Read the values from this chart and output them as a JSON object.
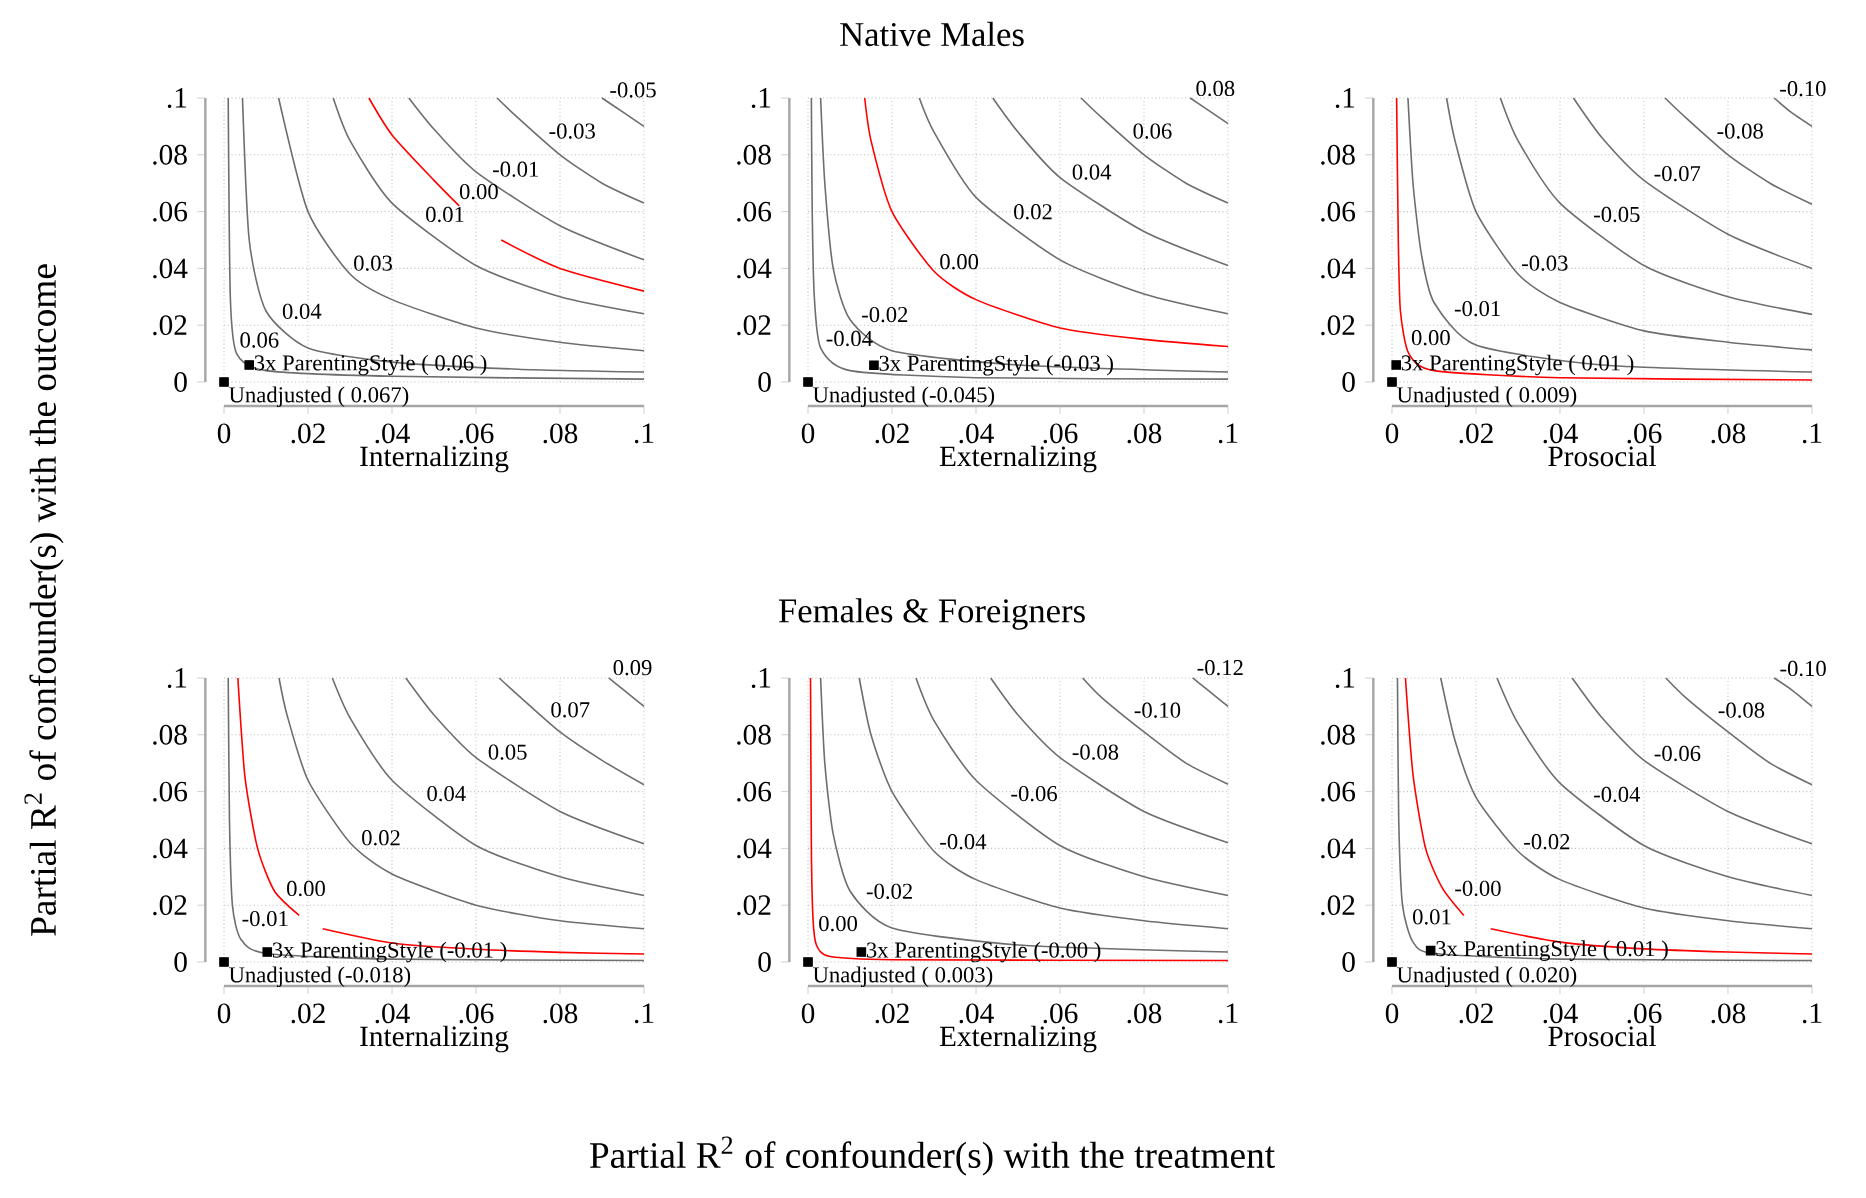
{
  "chart_data": [
    {
      "type": "line",
      "xlabel": "Internalizing",
      "ylabel": "Partial R$^{2}$ of confounder(s) with the outcome",
      "xlim": [
        0,
        0.1
      ],
      "ylim": [
        0,
        0.1
      ],
      "grid": true,
      "xticks": [
        {
          "value": 0,
          "label": "0"
        },
        {
          "value": 0.02,
          "label": ".02"
        },
        {
          "value": 0.04,
          "label": ".04"
        },
        {
          "value": 0.06,
          "label": ".06"
        },
        {
          "value": 0.08,
          "label": ".08"
        },
        {
          "value": 0.1,
          "label": ".1"
        }
      ],
      "yticks": [
        {
          "value": 0,
          "label": "0"
        },
        {
          "value": 0.02,
          "label": ".02"
        },
        {
          "value": 0.04,
          "label": ".04"
        },
        {
          "value": 0.06,
          "label": ".06"
        },
        {
          "value": 0.08,
          "label": ".08"
        },
        {
          "value": 0.1,
          "label": ".1"
        }
      ],
      "series": [
        {
          "name": "0.06",
          "color": "#6e6e6e",
          "x": [
            0.001,
            0.0015,
            0.003,
            0.01,
            0.04,
            0.1
          ],
          "values": [
            0.1,
            0.03,
            0.01,
            0.004,
            0.002,
            0.001
          ]
        },
        {
          "name": "0.04",
          "color": "#6e6e6e",
          "x": [
            0.0044,
            0.006,
            0.01,
            0.02,
            0.04,
            0.07,
            0.1
          ],
          "values": [
            0.1,
            0.05,
            0.025,
            0.012,
            0.007,
            0.0045,
            0.0035
          ]
        },
        {
          "name": "0.03",
          "color": "#6e6e6e",
          "x": [
            0.013,
            0.02,
            0.03,
            0.04,
            0.06,
            0.08,
            0.1
          ],
          "values": [
            0.1,
            0.06,
            0.038,
            0.029,
            0.019,
            0.014,
            0.011
          ]
        },
        {
          "name": "0.01",
          "color": "#6e6e6e",
          "x": [
            0.026,
            0.03,
            0.04,
            0.06,
            0.08,
            0.1
          ],
          "values": [
            0.1,
            0.085,
            0.063,
            0.041,
            0.03,
            0.024
          ]
        },
        {
          "name": "0.00",
          "color": "#ff0000",
          "x": [
            0.0345,
            0.04,
            0.05,
            0.056,
            0.061,
            0.066,
            0.08,
            0.1
          ],
          "values": [
            0.1,
            0.087,
            0.071,
            0.062,
            null,
            0.05,
            0.04,
            0.032
          ]
        },
        {
          "name": "-0.01",
          "color": "#6e6e6e",
          "x": [
            0.044,
            0.05,
            0.06,
            0.08,
            0.1
          ],
          "values": [
            0.1,
            0.089,
            0.074,
            0.055,
            0.043
          ]
        },
        {
          "name": "-0.03",
          "color": "#6e6e6e",
          "x": [
            0.065,
            0.07,
            0.08,
            0.09,
            0.1
          ],
          "values": [
            0.1,
            0.093,
            0.08,
            0.07,
            0.063
          ]
        },
        {
          "name": "-0.05",
          "color": "#6e6e6e",
          "x": [
            0.09,
            0.095,
            0.1
          ],
          "values": [
            0.1,
            0.095,
            0.09
          ]
        },
        {
          "name": "3x ParentingStyle ( 0.06 )",
          "type": "scatter",
          "marker": "square",
          "color": "#000000",
          "x": [
            0.006
          ],
          "values": [
            0.006
          ]
        },
        {
          "name": "Unadjusted ( 0.067)",
          "type": "scatter",
          "marker": "square",
          "color": "#000000",
          "x": [
            0
          ],
          "values": [
            0
          ]
        }
      ]
    },
    {
      "type": "line",
      "title": "Native Males",
      "xlabel": "Externalizing",
      "xlim": [
        0,
        0.1
      ],
      "ylim": [
        0,
        0.1
      ],
      "grid": true,
      "xticks": [
        {
          "value": 0,
          "label": "0"
        },
        {
          "value": 0.02,
          "label": ".02"
        },
        {
          "value": 0.04,
          "label": ".04"
        },
        {
          "value": 0.06,
          "label": ".06"
        },
        {
          "value": 0.08,
          "label": ".08"
        },
        {
          "value": 0.1,
          "label": ".1"
        }
      ],
      "yticks": [
        {
          "value": 0,
          "label": "0"
        },
        {
          "value": 0.02,
          "label": ".02"
        },
        {
          "value": 0.04,
          "label": ".04"
        },
        {
          "value": 0.06,
          "label": ".06"
        },
        {
          "value": 0.08,
          "label": ".08"
        },
        {
          "value": 0.1,
          "label": ".1"
        }
      ],
      "series": [
        {
          "name": "-0.04",
          "color": "#6e6e6e",
          "x": [
            0.0008,
            0.001,
            0.0015,
            0.003,
            0.01,
            0.04,
            0.1
          ],
          "values": [
            0.1,
            0.06,
            0.03,
            0.012,
            0.004,
            0.0015,
            0.001
          ]
        },
        {
          "name": "-0.02",
          "color": "#6e6e6e",
          "x": [
            0.003,
            0.004,
            0.006,
            0.01,
            0.02,
            0.05,
            0.1
          ],
          "values": [
            0.1,
            0.07,
            0.04,
            0.022,
            0.011,
            0.006,
            0.0035
          ]
        },
        {
          "name": "0.00",
          "color": "#ff0000",
          "x": [
            0.0135,
            0.015,
            0.02,
            0.03,
            0.04,
            0.06,
            0.08,
            0.1
          ],
          "values": [
            0.1,
            0.085,
            0.06,
            0.039,
            0.029,
            0.019,
            0.015,
            0.0125
          ]
        },
        {
          "name": "0.02",
          "color": "#6e6e6e",
          "x": [
            0.0265,
            0.03,
            0.04,
            0.06,
            0.08,
            0.1
          ],
          "values": [
            0.1,
            0.088,
            0.065,
            0.043,
            0.031,
            0.024
          ]
        },
        {
          "name": "0.04",
          "color": "#6e6e6e",
          "x": [
            0.044,
            0.05,
            0.06,
            0.08,
            0.1
          ],
          "values": [
            0.1,
            0.088,
            0.072,
            0.053,
            0.041
          ]
        },
        {
          "name": "0.06",
          "color": "#6e6e6e",
          "x": [
            0.065,
            0.07,
            0.08,
            0.09,
            0.1
          ],
          "values": [
            0.1,
            0.093,
            0.08,
            0.07,
            0.063
          ]
        },
        {
          "name": "0.08",
          "color": "#6e6e6e",
          "x": [
            0.091,
            0.095,
            0.1
          ],
          "values": [
            0.1,
            0.096,
            0.091
          ]
        },
        {
          "name": "3x ParentingStyle (-0.03 )",
          "type": "scatter",
          "marker": "square",
          "color": "#000000",
          "x": [
            0.0157
          ],
          "values": [
            0.0059
          ]
        },
        {
          "name": "Unadjusted (-0.045)",
          "type": "scatter",
          "marker": "square",
          "color": "#000000",
          "x": [
            0
          ],
          "values": [
            0
          ]
        }
      ]
    },
    {
      "type": "line",
      "xlabel": "Prosocial",
      "xlim": [
        0,
        0.1
      ],
      "ylim": [
        0,
        0.1
      ],
      "grid": true,
      "xticks": [
        {
          "value": 0,
          "label": "0"
        },
        {
          "value": 0.02,
          "label": ".02"
        },
        {
          "value": 0.04,
          "label": ".04"
        },
        {
          "value": 0.06,
          "label": ".06"
        },
        {
          "value": 0.08,
          "label": ".08"
        },
        {
          "value": 0.1,
          "label": ".1"
        }
      ],
      "yticks": [
        {
          "value": 0,
          "label": "0"
        },
        {
          "value": 0.02,
          "label": ".02"
        },
        {
          "value": 0.04,
          "label": ".04"
        },
        {
          "value": 0.06,
          "label": ".06"
        },
        {
          "value": 0.08,
          "label": ".08"
        },
        {
          "value": 0.1,
          "label": ".1"
        }
      ],
      "series": [
        {
          "name": "0.00",
          "color": "#ff0000",
          "x": [
            0.0011,
            0.0015,
            0.002,
            0.004,
            0.01,
            0.04,
            0.1
          ],
          "values": [
            0.1,
            0.05,
            0.025,
            0.01,
            0.004,
            0.0015,
            0.0007
          ]
        },
        {
          "name": "-0.01",
          "color": "#6e6e6e",
          "x": [
            0.0038,
            0.005,
            0.007,
            0.01,
            0.02,
            0.05,
            0.1
          ],
          "values": [
            0.1,
            0.07,
            0.045,
            0.028,
            0.013,
            0.006,
            0.0035
          ]
        },
        {
          "name": "-0.03",
          "color": "#6e6e6e",
          "x": [
            0.013,
            0.015,
            0.02,
            0.03,
            0.04,
            0.06,
            0.08,
            0.1
          ],
          "values": [
            0.1,
            0.085,
            0.06,
            0.038,
            0.028,
            0.018,
            0.014,
            0.0113
          ]
        },
        {
          "name": "-0.05",
          "color": "#6e6e6e",
          "x": [
            0.0258,
            0.03,
            0.04,
            0.06,
            0.08,
            0.1
          ],
          "values": [
            0.1,
            0.085,
            0.063,
            0.041,
            0.03,
            0.0238
          ]
        },
        {
          "name": "-0.07",
          "color": "#6e6e6e",
          "x": [
            0.0432,
            0.05,
            0.06,
            0.08,
            0.1
          ],
          "values": [
            0.1,
            0.086,
            0.071,
            0.052,
            0.04
          ]
        },
        {
          "name": "-0.08",
          "color": "#6e6e6e",
          "x": [
            0.065,
            0.07,
            0.08,
            0.09,
            0.1
          ],
          "values": [
            0.1,
            0.093,
            0.08,
            0.07,
            0.0626
          ]
        },
        {
          "name": "-0.10",
          "color": "#6e6e6e",
          "x": [
            0.091,
            0.095,
            0.1
          ],
          "values": [
            0.1,
            0.095,
            0.09
          ]
        },
        {
          "name": "3x ParentingStyle ( 0.01 )",
          "type": "scatter",
          "marker": "square",
          "color": "#000000",
          "x": [
            0.001
          ],
          "values": [
            0.006
          ]
        },
        {
          "name": "Unadjusted ( 0.009)",
          "type": "scatter",
          "marker": "square",
          "color": "#000000",
          "x": [
            0
          ],
          "values": [
            0
          ]
        }
      ]
    },
    {
      "type": "line",
      "xlabel": "Internalizing",
      "xlim": [
        0,
        0.1
      ],
      "ylim": [
        0,
        0.1
      ],
      "grid": true,
      "xticks": [
        {
          "value": 0,
          "label": "0"
        },
        {
          "value": 0.02,
          "label": ".02"
        },
        {
          "value": 0.04,
          "label": ".04"
        },
        {
          "value": 0.06,
          "label": ".06"
        },
        {
          "value": 0.08,
          "label": ".08"
        },
        {
          "value": 0.1,
          "label": ".1"
        }
      ],
      "yticks": [
        {
          "value": 0,
          "label": "0"
        },
        {
          "value": 0.02,
          "label": ".02"
        },
        {
          "value": 0.04,
          "label": ".04"
        },
        {
          "value": 0.06,
          "label": ".06"
        },
        {
          "value": 0.08,
          "label": ".08"
        },
        {
          "value": 0.1,
          "label": ".1"
        }
      ],
      "series": [
        {
          "name": "-0.01",
          "color": "#6e6e6e",
          "x": [
            0.001,
            0.0013,
            0.002,
            0.004,
            0.01,
            0.04,
            0.1
          ],
          "values": [
            0.1,
            0.05,
            0.02,
            0.008,
            0.003,
            0.001,
            0.0005
          ]
        },
        {
          "name": "0.00",
          "color": "#ff0000",
          "x": [
            0.0033,
            0.005,
            0.008,
            0.012,
            0.0179,
            0.021,
            0.0235,
            0.04,
            0.06,
            0.08,
            0.1
          ],
          "values": [
            0.1,
            0.065,
            0.04,
            0.025,
            0.0164,
            null,
            0.0117,
            0.0067,
            0.0045,
            0.0034,
            0.0028
          ]
        },
        {
          "name": "0.02",
          "color": "#6e6e6e",
          "x": [
            0.0131,
            0.015,
            0.02,
            0.03,
            0.04,
            0.06,
            0.08,
            0.1
          ],
          "values": [
            0.1,
            0.087,
            0.064,
            0.042,
            0.031,
            0.02,
            0.0145,
            0.0117
          ]
        },
        {
          "name": "0.04",
          "color": "#6e6e6e",
          "x": [
            0.0258,
            0.03,
            0.04,
            0.06,
            0.08,
            0.1
          ],
          "values": [
            0.1,
            0.086,
            0.064,
            0.041,
            0.03,
            0.0234
          ]
        },
        {
          "name": "0.05",
          "color": "#6e6e6e",
          "x": [
            0.0433,
            0.05,
            0.06,
            0.08,
            0.1
          ],
          "values": [
            0.1,
            0.087,
            0.072,
            0.053,
            0.0416
          ]
        },
        {
          "name": "0.07",
          "color": "#6e6e6e",
          "x": [
            0.0655,
            0.07,
            0.08,
            0.09,
            0.1
          ],
          "values": [
            0.1,
            0.094,
            0.081,
            0.071,
            0.0624
          ]
        },
        {
          "name": "0.09",
          "color": "#6e6e6e",
          "x": [
            0.0916,
            0.095,
            0.1
          ],
          "values": [
            0.1,
            0.096,
            0.09
          ]
        },
        {
          "name": "3x ParentingStyle (-0.01 )",
          "type": "scatter",
          "marker": "square",
          "color": "#000000",
          "x": [
            0.0103
          ],
          "values": [
            0.0035
          ]
        },
        {
          "name": "Unadjusted (-0.018)",
          "type": "scatter",
          "marker": "square",
          "color": "#000000",
          "x": [
            0
          ],
          "values": [
            0
          ]
        }
      ]
    },
    {
      "type": "line",
      "title": "Females & Foreigners",
      "xlabel": "Externalizing",
      "annotations": [
        "Partial R$^{2}$ of confounder(s) with the treatment"
      ],
      "xlim": [
        0,
        0.1
      ],
      "ylim": [
        0,
        0.1
      ],
      "grid": true,
      "xticks": [
        {
          "value": 0,
          "label": "0"
        },
        {
          "value": 0.02,
          "label": ".02"
        },
        {
          "value": 0.04,
          "label": ".04"
        },
        {
          "value": 0.06,
          "label": ".06"
        },
        {
          "value": 0.08,
          "label": ".08"
        },
        {
          "value": 0.1,
          "label": ".1"
        }
      ],
      "yticks": [
        {
          "value": 0,
          "label": "0"
        },
        {
          "value": 0.02,
          "label": ".02"
        },
        {
          "value": 0.04,
          "label": ".04"
        },
        {
          "value": 0.06,
          "label": ".06"
        },
        {
          "value": 0.08,
          "label": ".08"
        },
        {
          "value": 0.1,
          "label": ".1"
        }
      ],
      "series": [
        {
          "name": "0.00",
          "color": "#ff0000",
          "x": [
            0.0006,
            0.0008,
            0.0012,
            0.002,
            0.005,
            0.02,
            0.1
          ],
          "values": [
            0.1,
            0.04,
            0.015,
            0.006,
            0.002,
            0.0008,
            0.0005
          ]
        },
        {
          "name": "-0.02",
          "color": "#6e6e6e",
          "x": [
            0.003,
            0.004,
            0.006,
            0.01,
            0.02,
            0.05,
            0.1
          ],
          "values": [
            0.1,
            0.07,
            0.045,
            0.025,
            0.012,
            0.006,
            0.0035
          ]
        },
        {
          "name": "-0.04",
          "color": "#6e6e6e",
          "x": [
            0.0122,
            0.015,
            0.02,
            0.03,
            0.04,
            0.06,
            0.08,
            0.1
          ],
          "values": [
            0.1,
            0.08,
            0.06,
            0.039,
            0.029,
            0.019,
            0.0145,
            0.0117
          ]
        },
        {
          "name": "-0.06",
          "color": "#6e6e6e",
          "x": [
            0.0257,
            0.03,
            0.04,
            0.06,
            0.08,
            0.1
          ],
          "values": [
            0.1,
            0.085,
            0.064,
            0.041,
            0.03,
            0.0234
          ]
        },
        {
          "name": "-0.08",
          "color": "#6e6e6e",
          "x": [
            0.0435,
            0.05,
            0.06,
            0.08,
            0.1
          ],
          "values": [
            0.1,
            0.087,
            0.072,
            0.053,
            0.042
          ]
        },
        {
          "name": "-0.10",
          "color": "#6e6e6e",
          "x": [
            0.0654,
            0.07,
            0.08,
            0.09,
            0.1
          ],
          "values": [
            0.1,
            0.093,
            0.081,
            0.07,
            0.0626
          ]
        },
        {
          "name": "-0.12",
          "color": "#6e6e6e",
          "x": [
            0.0916,
            0.095,
            0.1
          ],
          "values": [
            0.1,
            0.096,
            0.09
          ]
        },
        {
          "name": "3x ParentingStyle (-0.00 )",
          "type": "scatter",
          "marker": "square",
          "color": "#000000",
          "x": [
            0.0127
          ],
          "values": [
            0.0035
          ]
        },
        {
          "name": "Unadjusted ( 0.003)",
          "type": "scatter",
          "marker": "square",
          "color": "#000000",
          "x": [
            0
          ],
          "values": [
            0
          ]
        }
      ]
    },
    {
      "type": "line",
      "xlabel": "Prosocial",
      "xlim": [
        0,
        0.1
      ],
      "ylim": [
        0,
        0.1
      ],
      "grid": true,
      "xticks": [
        {
          "value": 0,
          "label": "0"
        },
        {
          "value": 0.02,
          "label": ".02"
        },
        {
          "value": 0.04,
          "label": ".04"
        },
        {
          "value": 0.06,
          "label": ".06"
        },
        {
          "value": 0.08,
          "label": ".08"
        },
        {
          "value": 0.1,
          "label": ".1"
        }
      ],
      "yticks": [
        {
          "value": 0,
          "label": "0"
        },
        {
          "value": 0.02,
          "label": ".02"
        },
        {
          "value": 0.04,
          "label": ".04"
        },
        {
          "value": 0.06,
          "label": ".06"
        },
        {
          "value": 0.08,
          "label": ".08"
        },
        {
          "value": 0.1,
          "label": ".1"
        }
      ],
      "series": [
        {
          "name": "0.01",
          "color": "#6e6e6e",
          "x": [
            0.0013,
            0.0016,
            0.0025,
            0.005,
            0.01,
            0.04,
            0.1
          ],
          "values": [
            0.1,
            0.05,
            0.02,
            0.007,
            0.003,
            0.001,
            0.0005
          ]
        },
        {
          "name": "-0.00",
          "color": "#ff0000",
          "x": [
            0.0032,
            0.005,
            0.008,
            0.012,
            0.0171,
            0.02,
            0.0235,
            0.04,
            0.06,
            0.08,
            0.1
          ],
          "values": [
            0.1,
            0.066,
            0.04,
            0.026,
            0.0164,
            null,
            0.0117,
            0.007,
            0.0046,
            0.0035,
            0.0028
          ]
        },
        {
          "name": "-0.02",
          "color": "#6e6e6e",
          "x": [
            0.0116,
            0.015,
            0.02,
            0.03,
            0.04,
            0.06,
            0.08,
            0.1
          ],
          "values": [
            0.1,
            0.078,
            0.058,
            0.039,
            0.029,
            0.019,
            0.0145,
            0.0117
          ]
        },
        {
          "name": "-0.04",
          "color": "#6e6e6e",
          "x": [
            0.025,
            0.03,
            0.04,
            0.06,
            0.08,
            0.1
          ],
          "values": [
            0.1,
            0.084,
            0.063,
            0.041,
            0.03,
            0.0234
          ]
        },
        {
          "name": "-0.06",
          "color": "#6e6e6e",
          "x": [
            0.0429,
            0.05,
            0.06,
            0.08,
            0.1
          ],
          "values": [
            0.1,
            0.086,
            0.071,
            0.053,
            0.0416
          ]
        },
        {
          "name": "-0.08",
          "color": "#6e6e6e",
          "x": [
            0.0652,
            0.07,
            0.08,
            0.09,
            0.1
          ],
          "values": [
            0.1,
            0.093,
            0.081,
            0.07,
            0.0624
          ]
        },
        {
          "name": "-0.10",
          "color": "#6e6e6e",
          "x": [
            0.091,
            0.095,
            0.1
          ],
          "values": [
            0.1,
            0.096,
            0.09
          ]
        },
        {
          "name": "3x ParentingStyle ( 0.01 )",
          "type": "scatter",
          "marker": "square",
          "color": "#000000",
          "x": [
            0.0092
          ],
          "values": [
            0.004
          ]
        },
        {
          "name": "Unadjusted ( 0.020)",
          "type": "scatter",
          "marker": "square",
          "color": "#000000",
          "x": [
            0
          ],
          "values": [
            0
          ]
        }
      ]
    }
  ]
}
